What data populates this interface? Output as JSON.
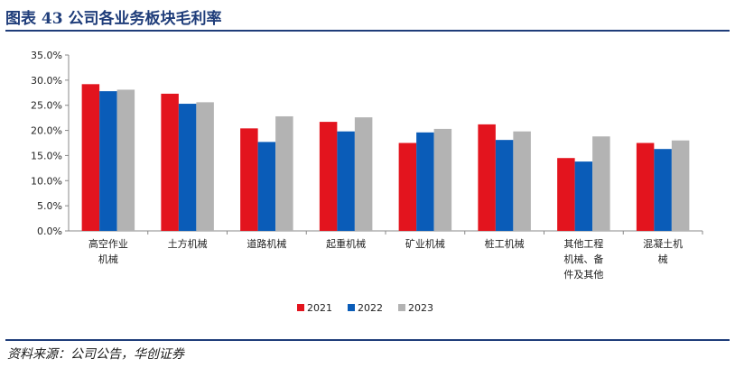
{
  "figure": {
    "title": "图表 43   公司各业务板块毛利率",
    "source": "资料来源：公司公告，华创证券"
  },
  "chart_data": {
    "type": "bar",
    "categories": [
      [
        "高空作业",
        "机械"
      ],
      [
        "土方机械"
      ],
      [
        "道路机械"
      ],
      [
        "起重机械"
      ],
      [
        "矿业机械"
      ],
      [
        "桩工机械"
      ],
      [
        "其他工程",
        "机械、备",
        "件及其他"
      ],
      [
        "混凝土机",
        "械"
      ]
    ],
    "series": [
      {
        "name": "2021",
        "color": "#e3141e",
        "values": [
          29.2,
          27.3,
          20.4,
          21.7,
          17.5,
          21.2,
          14.5,
          17.5
        ]
      },
      {
        "name": "2022",
        "color": "#0a5cb8",
        "values": [
          27.8,
          25.3,
          17.7,
          19.8,
          19.6,
          18.1,
          13.8,
          16.3
        ]
      },
      {
        "name": "2023",
        "color": "#b3b3b3",
        "values": [
          28.1,
          25.6,
          22.8,
          22.6,
          20.3,
          19.8,
          18.8,
          18.0
        ]
      }
    ],
    "yticks": [
      "0.0%",
      "5.0%",
      "10.0%",
      "15.0%",
      "20.0%",
      "25.0%",
      "30.0%",
      "35.0%"
    ],
    "ylim": [
      0,
      35
    ],
    "grid": false,
    "legend_position": "bottom-center"
  }
}
